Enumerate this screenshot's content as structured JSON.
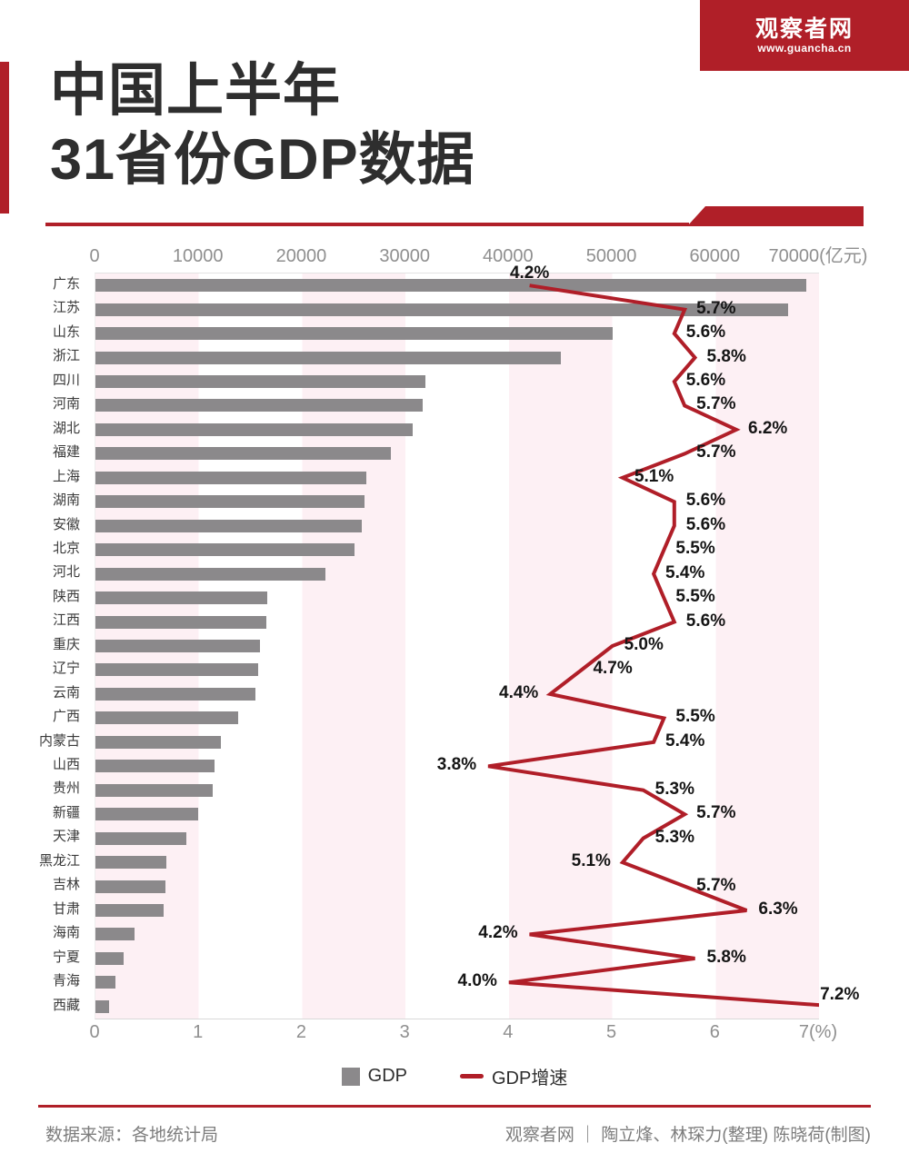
{
  "logo": {
    "name": "观察者网",
    "url": "www.guancha.cn"
  },
  "title": {
    "line1": "中国上半年",
    "line2": "31省份GDP数据"
  },
  "legend": {
    "gdp": "GDP",
    "growth": "GDP增速"
  },
  "footer": {
    "source": "数据来源：各地统计局",
    "credit": "观察者网 ｜ 陶立烽、林琛力(整理) 陈晓荷(制图)"
  },
  "chart_data": {
    "type": "bar",
    "subtype": "horizontal-bars-with-line-overlay",
    "title": "中国上半年31省份GDP数据",
    "categories": [
      "广东",
      "江苏",
      "山东",
      "浙江",
      "四川",
      "河南",
      "湖北",
      "福建",
      "上海",
      "湖南",
      "安徽",
      "北京",
      "河北",
      "陕西",
      "江西",
      "重庆",
      "辽宁",
      "云南",
      "广西",
      "内蒙古",
      "山西",
      "贵州",
      "新疆",
      "天津",
      "黑龙江",
      "吉林",
      "甘肃",
      "海南",
      "宁夏",
      "青海",
      "西藏"
    ],
    "series": [
      {
        "name": "GDP",
        "unit": "亿元",
        "type": "bar",
        "values": [
          68725,
          66968,
          50046,
          45004,
          31918,
          31683,
          30643,
          28553,
          26222,
          26016,
          25723,
          25029,
          22263,
          16574,
          16490,
          15930,
          15704,
          15460,
          13813,
          12117,
          11507,
          11380,
          9898,
          8788,
          6867,
          6789,
          6572,
          3793,
          2727,
          1917,
          1328
        ]
      },
      {
        "name": "GDP增速",
        "unit": "%",
        "type": "line",
        "values": [
          4.2,
          5.7,
          5.6,
          5.8,
          5.6,
          5.7,
          6.2,
          5.7,
          5.1,
          5.6,
          5.6,
          5.5,
          5.4,
          5.5,
          5.6,
          5.0,
          4.7,
          4.4,
          5.5,
          5.4,
          3.8,
          5.3,
          5.7,
          5.3,
          5.1,
          5.7,
          6.3,
          4.2,
          5.8,
          4.0,
          7.2
        ],
        "labels": [
          "4.2%",
          "5.7%",
          "5.6%",
          "5.8%",
          "5.6%",
          "5.7%",
          "6.2%",
          "5.7%",
          "5.1%",
          "5.6%",
          "5.6%",
          "5.5%",
          "5.4%",
          "5.5%",
          "5.6%",
          "5.0%",
          "4.7%",
          "4.4%",
          "5.5%",
          "5.4%",
          "3.8%",
          "5.3%",
          "5.7%",
          "5.3%",
          "5.1%",
          "5.7%",
          "6.3%",
          "4.2%",
          "5.8%",
          "4.0%",
          "7.2%"
        ],
        "label_sides": [
          "above",
          "right",
          "right",
          "right",
          "right",
          "right",
          "right",
          "right",
          "right",
          "right",
          "right",
          "right",
          "right",
          "right",
          "right",
          "right",
          "right",
          "left",
          "right",
          "right",
          "left",
          "right",
          "right",
          "right",
          "left",
          "right",
          "right",
          "left",
          "right",
          "left",
          "above"
        ]
      }
    ],
    "top_axis": {
      "tick_labels": [
        "0",
        "10000",
        "20000",
        "30000",
        "40000",
        "50000",
        "60000",
        "70000(亿元)"
      ],
      "range": [
        0,
        70000
      ],
      "unit": "亿元"
    },
    "bottom_axis": {
      "tick_labels": [
        "0",
        "1",
        "2",
        "3",
        "4",
        "5",
        "6",
        "7(%)"
      ],
      "range": [
        0,
        7
      ],
      "unit": "%"
    },
    "grid": "alternating vertical pink/white bands every 10000亿元",
    "legend_position": "bottom-center",
    "colors": {
      "bar": "#8b898b",
      "line": "#b01e28",
      "stripe_pink": "#fdf0f4",
      "accent_red": "#b01f28",
      "axis_text": "#8f8f8f",
      "label_text": "#151515"
    }
  }
}
